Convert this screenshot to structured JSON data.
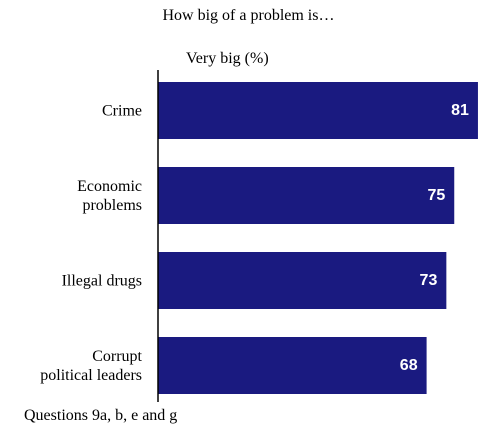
{
  "colors": {
    "bar": "#1a1a80",
    "axis": "#000000",
    "value_text": "#ffffff"
  },
  "chart_data": {
    "type": "bar",
    "orientation": "horizontal",
    "title": "How big of a problem is…",
    "value_caption": "Very big (%)",
    "footnote": "Questions 9a, b, e and g",
    "categories": [
      [
        "Crime"
      ],
      [
        "Economic",
        "problems"
      ],
      [
        "Illegal drugs"
      ],
      [
        "Corrupt",
        "political leaders"
      ]
    ],
    "values": [
      81,
      75,
      73,
      68
    ],
    "data_labels": [
      "81",
      "75",
      "73",
      "68"
    ],
    "xlim": [
      0,
      100
    ],
    "grid": false,
    "legend": "none"
  }
}
